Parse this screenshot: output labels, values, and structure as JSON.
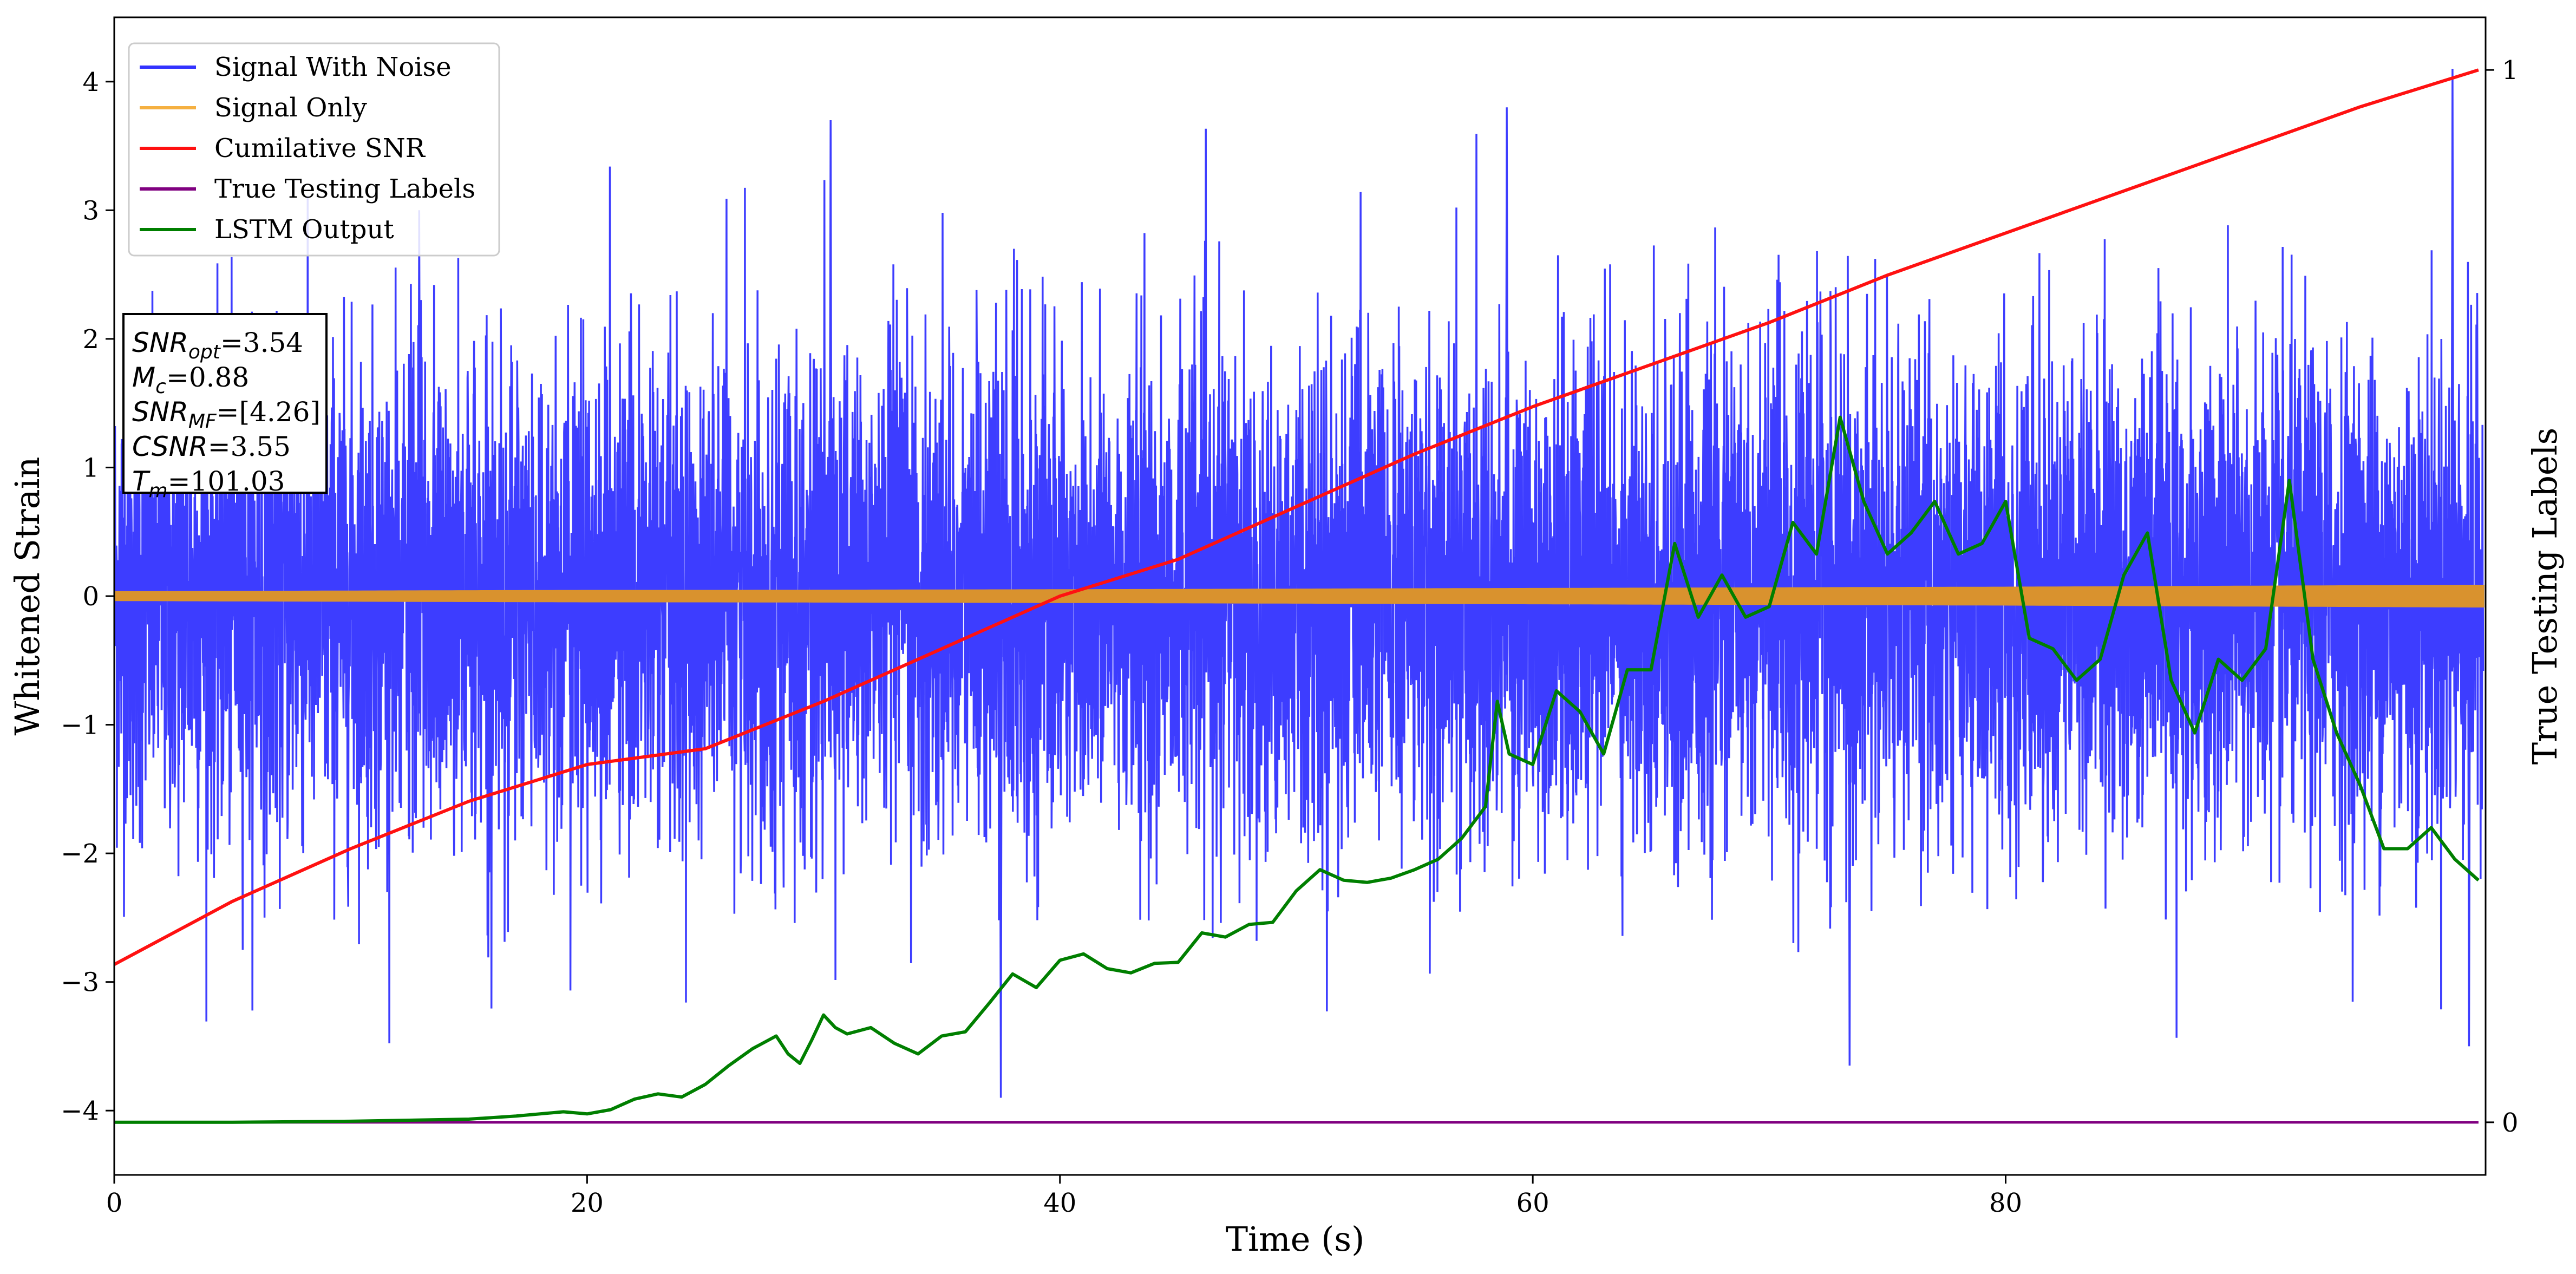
{
  "chart_data": {
    "type": "line",
    "xlabel": "Time (s)",
    "ylabel": "Whitened Strain",
    "y2label": "True Testing Labels",
    "xlim": [
      0,
      100.3
    ],
    "ylim": [
      -4.5,
      4.5
    ],
    "y2lim": [
      -0.05,
      1.05
    ],
    "xticks": [
      0,
      20,
      40,
      60,
      80
    ],
    "yticks": [
      -4,
      -3,
      -2,
      -1,
      0,
      1,
      2,
      3,
      4
    ],
    "y2ticks": [
      0,
      1
    ],
    "grid": false,
    "legend_position": "top-left",
    "legend": [
      {
        "name": "Signal With Noise",
        "color": "#3333ff"
      },
      {
        "name": "Signal Only",
        "color": "#f5b041"
      },
      {
        "name": "Cumilative SNR",
        "color": "#ff1111"
      },
      {
        "name": "True Testing Labels",
        "color": "#800080"
      },
      {
        "name": "LSTM Output",
        "color": "#007f00"
      }
    ],
    "info_box": [
      {
        "sym": "SNR",
        "sub": "opt",
        "val": "=3.54"
      },
      {
        "sym": "M",
        "sub": "c",
        "val": "=0.88"
      },
      {
        "sym": "SNR",
        "sub": "MF",
        "val": "=[4.26]"
      },
      {
        "sym": "CSNR",
        "sub": "",
        "val": "=3.55"
      },
      {
        "sym": "T",
        "sub": "m",
        "val": "=101.03"
      }
    ],
    "series": [
      {
        "name": "Signal With Noise",
        "axis": "left",
        "description": "whitened noisy strain, approx. zero-mean Gaussian noise, sigma ~0.95, spikes to about +4.1 / -4",
        "noise_sigma": 0.95,
        "envelope_max": 3.9,
        "envelope_min": -3.6,
        "notable_peaks": [
          {
            "x": 12.9,
            "y": 3.0
          },
          {
            "x": 30.3,
            "y": 3.7
          },
          {
            "x": 58.9,
            "y": 3.8
          },
          {
            "x": 73.4,
            "y": -3.65
          },
          {
            "x": 98.9,
            "y": 4.1
          },
          {
            "x": 37.5,
            "y": -3.9
          },
          {
            "x": 99.6,
            "y": -3.5
          }
        ]
      },
      {
        "name": "Signal Only",
        "axis": "left",
        "amplitude_x": [
          0,
          10,
          20,
          25,
          40,
          60,
          80,
          100
        ],
        "amplitude_y": [
          0.03,
          0.035,
          0.04,
          0.04,
          0.045,
          0.055,
          0.065,
          0.08
        ]
      },
      {
        "name": "Cumilative SNR",
        "axis": "right",
        "x": [
          0,
          5,
          10,
          15,
          20,
          25,
          30,
          35,
          40,
          45,
          50,
          55,
          60,
          65,
          70,
          75,
          80,
          85,
          90,
          95,
          100
        ],
        "y": [
          0.15,
          0.21,
          0.26,
          0.305,
          0.34,
          0.355,
          0.4,
          0.45,
          0.5,
          0.535,
          0.585,
          0.635,
          0.68,
          0.72,
          0.76,
          0.805,
          0.845,
          0.885,
          0.925,
          0.965,
          1.0
        ]
      },
      {
        "name": "True Testing Labels",
        "axis": "right",
        "x": [
          0,
          100
        ],
        "y": [
          0,
          0
        ]
      },
      {
        "name": "LSTM Output",
        "axis": "right",
        "x": [
          0,
          5,
          10,
          15,
          17,
          19,
          20,
          21,
          22,
          23,
          24,
          25,
          26,
          27,
          28,
          28.5,
          29,
          29.5,
          30,
          30.5,
          31,
          32,
          33,
          34,
          35,
          36,
          37,
          38,
          39,
          40,
          41,
          42,
          43,
          44,
          45,
          46,
          47,
          48,
          49,
          50,
          51,
          52,
          53,
          54,
          55,
          56,
          57,
          58,
          58.5,
          59,
          60,
          61,
          62,
          63,
          64,
          65,
          66,
          67,
          68,
          69,
          70,
          71,
          72,
          73,
          74,
          75,
          76,
          77,
          78,
          79,
          80,
          81,
          82,
          83,
          84,
          85,
          86,
          87,
          88,
          89,
          90,
          91,
          92,
          93,
          94,
          95,
          96,
          97,
          98,
          99,
          100
        ],
        "y": [
          0.0,
          0.0,
          0.001,
          0.003,
          0.006,
          0.01,
          0.008,
          0.012,
          0.022,
          0.027,
          0.024,
          0.036,
          0.054,
          0.07,
          0.082,
          0.065,
          0.056,
          0.078,
          0.102,
          0.09,
          0.084,
          0.09,
          0.075,
          0.065,
          0.082,
          0.086,
          0.113,
          0.141,
          0.128,
          0.154,
          0.16,
          0.146,
          0.142,
          0.151,
          0.152,
          0.18,
          0.176,
          0.188,
          0.19,
          0.22,
          0.24,
          0.23,
          0.228,
          0.232,
          0.24,
          0.25,
          0.27,
          0.3,
          0.4,
          0.35,
          0.34,
          0.41,
          0.39,
          0.35,
          0.43,
          0.43,
          0.55,
          0.48,
          0.52,
          0.48,
          0.49,
          0.57,
          0.54,
          0.67,
          0.59,
          0.54,
          0.56,
          0.59,
          0.54,
          0.55,
          0.59,
          0.46,
          0.45,
          0.42,
          0.44,
          0.52,
          0.56,
          0.42,
          0.37,
          0.44,
          0.42,
          0.45,
          0.61,
          0.44,
          0.37,
          0.32,
          0.26,
          0.26,
          0.28,
          0.25,
          0.23
        ]
      }
    ]
  }
}
